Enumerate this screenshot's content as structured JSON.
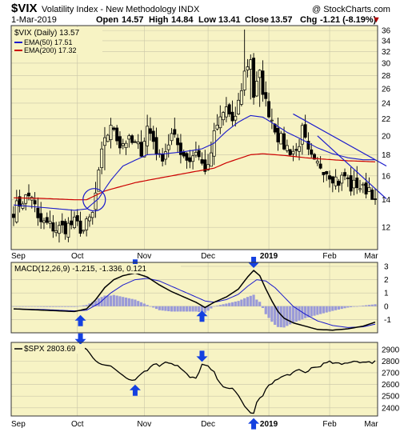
{
  "header": {
    "symbol": "$VIX",
    "name": "Volatility Index - New Methodology",
    "exchange": "INDX",
    "watermark": "@ StockCharts.com",
    "date": "1-Mar-2019",
    "open_label": "Open",
    "open": "14.57",
    "high_label": "High",
    "high": "14.84",
    "low_label": "Low",
    "low": "13.41",
    "close_label": "Close",
    "close": "13.57",
    "chg_label": "Chg",
    "chg": "-1.21 (-8.19%)",
    "down_marker": "▼"
  },
  "colors": {
    "panel_bg": "#f7f3c4",
    "grid": "#c9c6a8",
    "ema50": "#1a1acc",
    "ema200": "#cc0000",
    "trendline": "#1a1acc",
    "histogram": "#9a9ad8",
    "arrow": "#1440e0",
    "candle": "#000000"
  },
  "chart_data": [
    {
      "type": "candlestick",
      "title": "$VIX (Daily) 13.57",
      "legend": [
        "EMA(50) 17.51",
        "EMA(200) 17.32"
      ],
      "legend_placement": "top-left",
      "scale": "log",
      "ylim": [
        10.6,
        37
      ],
      "yticks": [
        12,
        14,
        16,
        18,
        20,
        22,
        24,
        26,
        28,
        30,
        32,
        34,
        36
      ],
      "x_labels": [
        "Sep",
        "Oct",
        "Nov",
        "Dec",
        "2019",
        "Feb",
        "Mar"
      ],
      "x_label_bold": "2019",
      "grid": true,
      "close_anchors": [
        [
          0,
          13.2
        ],
        [
          3,
          14.0
        ],
        [
          6,
          14.4
        ],
        [
          8,
          12.4
        ],
        [
          11,
          12.2
        ],
        [
          14,
          11.9
        ],
        [
          17,
          12.0
        ],
        [
          20,
          12.3
        ],
        [
          23,
          11.8
        ],
        [
          26,
          12.9
        ],
        [
          28,
          16.0
        ],
        [
          30,
          20.0
        ],
        [
          33,
          21.0
        ],
        [
          35,
          19.0
        ],
        [
          37,
          19.5
        ],
        [
          40,
          19.0
        ],
        [
          42,
          18.5
        ],
        [
          44,
          21.0
        ],
        [
          46,
          19.5
        ],
        [
          48,
          17.5
        ],
        [
          50,
          18.5
        ],
        [
          52,
          20.0
        ],
        [
          54,
          19.0
        ],
        [
          56,
          18.0
        ],
        [
          58,
          17.5
        ],
        [
          60,
          18.5
        ],
        [
          62,
          17.0
        ],
        [
          64,
          16.5
        ],
        [
          66,
          20.0
        ],
        [
          68,
          22.0
        ],
        [
          70,
          23.5
        ],
        [
          72,
          21.0
        ],
        [
          74,
          24.0
        ],
        [
          76,
          28.5
        ],
        [
          78,
          31.0
        ],
        [
          79,
          25.0
        ],
        [
          81,
          28.0
        ],
        [
          83,
          24.0
        ],
        [
          85,
          22.0
        ],
        [
          87,
          20.0
        ],
        [
          89,
          19.0
        ],
        [
          91,
          18.5
        ],
        [
          93,
          18.3
        ],
        [
          95,
          20.5
        ],
        [
          97,
          18.0
        ],
        [
          99,
          17.0
        ],
        [
          101,
          17.0
        ],
        [
          103,
          16.5
        ],
        [
          105,
          16.0
        ],
        [
          107,
          15.5
        ],
        [
          109,
          16.0
        ],
        [
          111,
          15.0
        ],
        [
          113,
          15.3
        ],
        [
          115,
          14.8
        ],
        [
          117,
          15.0
        ],
        [
          118,
          14.6
        ],
        [
          119,
          13.6
        ]
      ],
      "events": [
        [
          28,
          16.8,
          14.8
        ],
        [
          30,
          21.0,
          16.5
        ],
        [
          44,
          22.5,
          18.0
        ],
        [
          66,
          21.5,
          17.0
        ],
        [
          76,
          36.2,
          25.0
        ],
        [
          78,
          31.5,
          24.5
        ],
        [
          81,
          29.0,
          23.5
        ],
        [
          95,
          21.5,
          18.0
        ]
      ],
      "ema50_anchors": [
        [
          0,
          13.6
        ],
        [
          10,
          13.4
        ],
        [
          20,
          13.2
        ],
        [
          24,
          13.3
        ],
        [
          28,
          14.1
        ],
        [
          32,
          15.6
        ],
        [
          36,
          16.9
        ],
        [
          44,
          18.0
        ],
        [
          50,
          18.1
        ],
        [
          56,
          18.3
        ],
        [
          62,
          18.6
        ],
        [
          66,
          19.2
        ],
        [
          70,
          20.5
        ],
        [
          74,
          21.6
        ],
        [
          78,
          22.4
        ],
        [
          82,
          22.2
        ],
        [
          86,
          21.3
        ],
        [
          90,
          20.4
        ],
        [
          96,
          19.4
        ],
        [
          100,
          18.7
        ],
        [
          105,
          18.1
        ],
        [
          110,
          17.7
        ],
        [
          115,
          17.5
        ],
        [
          119,
          17.5
        ]
      ],
      "ema200_anchors": [
        [
          0,
          14.15
        ],
        [
          10,
          14.1
        ],
        [
          20,
          14.0
        ],
        [
          24,
          14.0
        ],
        [
          30,
          14.7
        ],
        [
          40,
          15.4
        ],
        [
          50,
          15.9
        ],
        [
          60,
          16.4
        ],
        [
          66,
          16.7
        ],
        [
          70,
          17.2
        ],
        [
          74,
          17.6
        ],
        [
          78,
          18.0
        ],
        [
          82,
          18.1
        ],
        [
          86,
          18.0
        ],
        [
          90,
          17.9
        ],
        [
          96,
          17.7
        ],
        [
          100,
          17.6
        ],
        [
          105,
          17.5
        ],
        [
          110,
          17.4
        ],
        [
          115,
          17.35
        ],
        [
          119,
          17.3
        ]
      ],
      "trendlines": [
        [
          [
            92,
            22.6
          ],
          [
            119,
            17.5
          ]
        ],
        [
          [
            100,
            20.0
          ],
          [
            119,
            14.9
          ]
        ]
      ],
      "circle_at": [
        26,
        14.0
      ]
    },
    {
      "type": "macd",
      "title": "MACD(12,26,9) -1.215, -1.336, 0.121",
      "ylim": [
        -2.0,
        3.3
      ],
      "yticks": [
        -1,
        0,
        1,
        2,
        3
      ],
      "x_labels": [
        "Sep",
        "Oct",
        "Nov",
        "Dec",
        "2019",
        "Feb",
        "Mar"
      ],
      "macd_anchors": [
        [
          0,
          -0.2
        ],
        [
          10,
          -0.3
        ],
        [
          20,
          -0.4
        ],
        [
          24,
          -0.2
        ],
        [
          27,
          0.5
        ],
        [
          30,
          1.4
        ],
        [
          33,
          2.0
        ],
        [
          36,
          2.3
        ],
        [
          40,
          2.5
        ],
        [
          44,
          2.2
        ],
        [
          48,
          1.6
        ],
        [
          52,
          1.1
        ],
        [
          56,
          0.7
        ],
        [
          60,
          0.3
        ],
        [
          63,
          -0.1
        ],
        [
          66,
          0.3
        ],
        [
          70,
          0.7
        ],
        [
          74,
          1.3
        ],
        [
          77,
          2.2
        ],
        [
          79,
          2.7
        ],
        [
          81,
          2.3
        ],
        [
          83,
          1.3
        ],
        [
          85,
          0.4
        ],
        [
          87,
          -0.4
        ],
        [
          89,
          -0.9
        ],
        [
          92,
          -1.25
        ],
        [
          96,
          -1.5
        ],
        [
          100,
          -1.75
        ],
        [
          105,
          -1.8
        ],
        [
          110,
          -1.7
        ],
        [
          115,
          -1.5
        ],
        [
          119,
          -1.2
        ]
      ],
      "signal_anchors": [
        [
          0,
          -0.2
        ],
        [
          10,
          -0.25
        ],
        [
          20,
          -0.35
        ],
        [
          24,
          -0.3
        ],
        [
          28,
          0.2
        ],
        [
          32,
          1.0
        ],
        [
          36,
          1.6
        ],
        [
          40,
          2.0
        ],
        [
          44,
          2.1
        ],
        [
          48,
          1.9
        ],
        [
          52,
          1.5
        ],
        [
          56,
          1.1
        ],
        [
          60,
          0.7
        ],
        [
          63,
          0.4
        ],
        [
          66,
          0.3
        ],
        [
          70,
          0.5
        ],
        [
          74,
          0.9
        ],
        [
          77,
          1.5
        ],
        [
          80,
          2.0
        ],
        [
          83,
          1.9
        ],
        [
          86,
          1.4
        ],
        [
          89,
          0.7
        ],
        [
          92,
          0.0
        ],
        [
          96,
          -0.6
        ],
        [
          100,
          -1.1
        ],
        [
          105,
          -1.45
        ],
        [
          110,
          -1.6
        ],
        [
          115,
          -1.55
        ],
        [
          119,
          -1.35
        ]
      ],
      "arrows_up": [
        22,
        62
      ],
      "arrows_down": [
        40,
        79
      ]
    },
    {
      "type": "line",
      "title": "$SPX 2803.69",
      "ylim": [
        2330,
        2960
      ],
      "yticks": [
        2400,
        2500,
        2600,
        2700,
        2800,
        2900
      ],
      "x_labels": [
        "Sep",
        "Oct",
        "Nov",
        "Dec",
        "2019",
        "Feb",
        "Mar"
      ],
      "x_label_bold": "2019",
      "series_anchors": [
        [
          0,
          2900
        ],
        [
          5,
          2895
        ],
        [
          10,
          2900
        ],
        [
          15,
          2905
        ],
        [
          20,
          2915
        ],
        [
          22,
          2925
        ],
        [
          24,
          2900
        ],
        [
          26,
          2830
        ],
        [
          28,
          2790
        ],
        [
          30,
          2770
        ],
        [
          32,
          2750
        ],
        [
          34,
          2720
        ],
        [
          36,
          2680
        ],
        [
          38,
          2650
        ],
        [
          40,
          2640
        ],
        [
          42,
          2700
        ],
        [
          44,
          2720
        ],
        [
          46,
          2780
        ],
        [
          48,
          2760
        ],
        [
          50,
          2800
        ],
        [
          52,
          2780
        ],
        [
          54,
          2760
        ],
        [
          56,
          2710
        ],
        [
          58,
          2660
        ],
        [
          60,
          2650
        ],
        [
          62,
          2770
        ],
        [
          64,
          2750
        ],
        [
          66,
          2700
        ],
        [
          68,
          2600
        ],
        [
          70,
          2580
        ],
        [
          72,
          2560
        ],
        [
          74,
          2500
        ],
        [
          76,
          2420
        ],
        [
          78,
          2350
        ],
        [
          79,
          2360
        ],
        [
          80,
          2440
        ],
        [
          81,
          2480
        ],
        [
          82,
          2500
        ],
        [
          84,
          2600
        ],
        [
          86,
          2630
        ],
        [
          88,
          2660
        ],
        [
          90,
          2680
        ],
        [
          92,
          2700
        ],
        [
          94,
          2720
        ],
        [
          96,
          2700
        ],
        [
          98,
          2740
        ],
        [
          100,
          2750
        ],
        [
          102,
          2775
        ],
        [
          104,
          2790
        ],
        [
          106,
          2780
        ],
        [
          108,
          2770
        ],
        [
          110,
          2790
        ],
        [
          112,
          2800
        ],
        [
          114,
          2795
        ],
        [
          116,
          2785
        ],
        [
          118,
          2790
        ],
        [
          119,
          2803
        ]
      ],
      "arrows_up": [
        40,
        79
      ],
      "arrows_down": [
        22,
        62
      ]
    }
  ]
}
